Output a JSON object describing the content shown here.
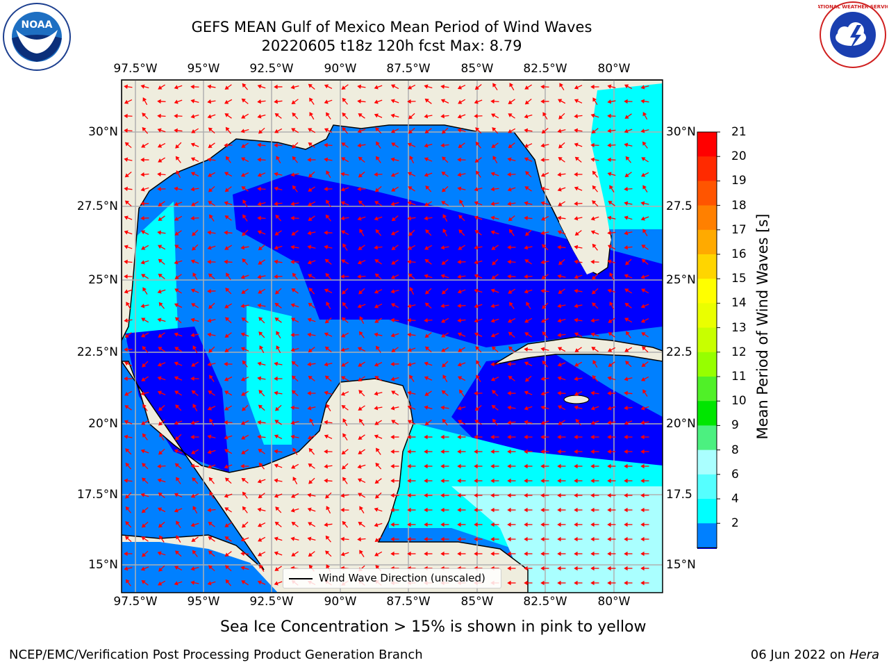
{
  "title": {
    "line1": "GEFS MEAN Gulf of Mexico Mean Period of Wind Waves",
    "line2": "20220605 t18z 120h fcst   Max: 8.79"
  },
  "map": {
    "lon_labels": [
      "97.5°W",
      "95°W",
      "92.5°W",
      "90°W",
      "87.5°W",
      "85°W",
      "82.5°W",
      "80°W"
    ],
    "lat_labels": [
      "30°N",
      "27.5°N",
      "25°N",
      "22.5°N",
      "20°N",
      "17.5°N",
      "15°N"
    ],
    "lat_labels_right": [
      "30°N",
      "27.5",
      "25°N",
      "22.5",
      "20°N",
      "17.5",
      "15°N"
    ],
    "land_color": "#efedde",
    "legend_label": "Wind Wave Direction (unscaled)"
  },
  "colorbar": {
    "label": "Mean Period of Wind Waves [s]",
    "ticks": [
      "21",
      "20",
      "19",
      "18",
      "17",
      "16",
      "15",
      "14",
      "13",
      "12",
      "11",
      "10",
      "9",
      "8",
      "6",
      "4",
      "2"
    ],
    "colors": [
      "#ff0000",
      "#ff2a00",
      "#ff5500",
      "#ff8000",
      "#ffaa00",
      "#ffd500",
      "#ffff00",
      "#eaff00",
      "#c8ff00",
      "#96ff00",
      "#50f028",
      "#00e600",
      "#4cf080",
      "#aaffff",
      "#55ffff",
      "#00ffff",
      "#0080ff"
    ],
    "underflow_color": "#0000ff"
  },
  "note": "Sea Ice Concentration > 15% is shown in pink to yellow",
  "footer": {
    "left": "NCEP/EMC/Verification Post Processing Product Generation Branch",
    "date": "06 Jun 2022 on",
    "host": "Hera"
  },
  "logos": {
    "noaa_text": "NOAA",
    "nws_text": "NATIONAL WEATHER SERVICE"
  }
}
